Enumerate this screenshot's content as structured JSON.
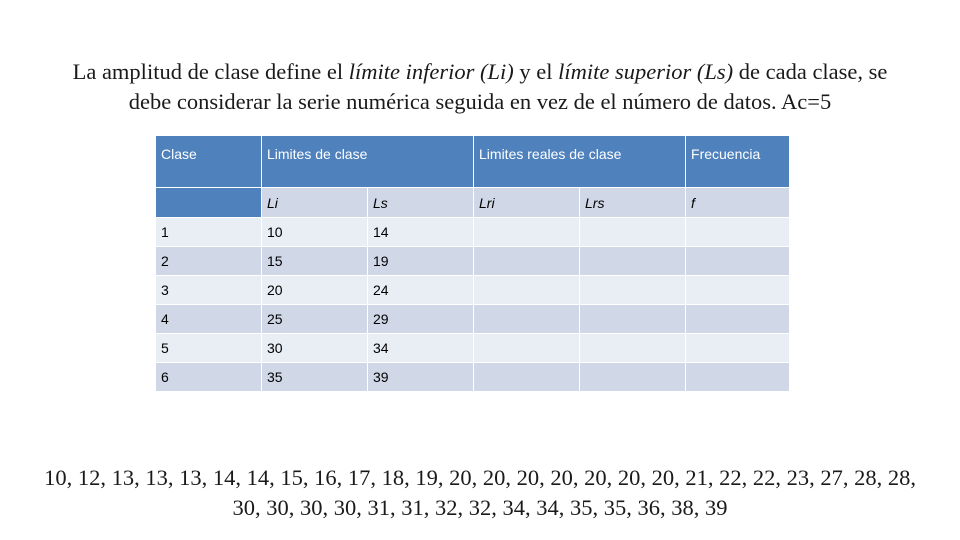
{
  "intro": {
    "part1": "La amplitud de clase define el ",
    "em1": "límite inferior (Li)",
    "part2": " y el ",
    "em2": "límite superior (Ls)",
    "part3": " de cada clase, se debe considerar la serie numérica seguida en vez de el número de datos. Ac=5"
  },
  "table": {
    "headers": {
      "clase": "Clase",
      "limites": "Limites de clase",
      "reales": "Limites reales de clase",
      "frecuencia": "Frecuencia"
    },
    "subheaders": {
      "li": "Li",
      "ls": "Ls",
      "lri": "Lri",
      "lrs": "Lrs",
      "f": "f"
    },
    "rows": [
      {
        "clase": "1",
        "li": "10",
        "ls": "14",
        "lri": "",
        "lrs": "",
        "f": ""
      },
      {
        "clase": "2",
        "li": "15",
        "ls": "19",
        "lri": "",
        "lrs": "",
        "f": ""
      },
      {
        "clase": "3",
        "li": "20",
        "ls": "24",
        "lri": "",
        "lrs": "",
        "f": ""
      },
      {
        "clase": "4",
        "li": "25",
        "ls": "29",
        "lri": "",
        "lrs": "",
        "f": ""
      },
      {
        "clase": "5",
        "li": "30",
        "ls": "34",
        "lri": "",
        "lrs": "",
        "f": ""
      },
      {
        "clase": "6",
        "li": "35",
        "ls": "39",
        "lri": "",
        "lrs": "",
        "f": ""
      }
    ]
  },
  "numbers": "10, 12, 13, 13, 13, 14, 14, 15, 16, 17, 18, 19, 20, 20, 20, 20, 20, 20, 20, 21, 22, 22, 23, 27, 28, 28, 30, 30, 30, 30, 31, 31, 32, 32, 34, 34, 35, 35, 36, 38, 39"
}
